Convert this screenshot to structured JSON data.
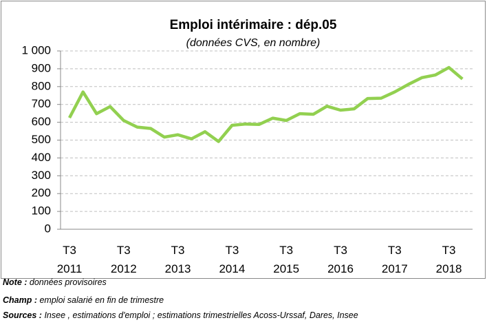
{
  "chart_data": {
    "type": "line",
    "title": "Emploi intérimaire : dép.05",
    "subtitle": "(données CVS, en nombre)",
    "categories": [
      "T3\n2011",
      null,
      null,
      null,
      "T3\n2012",
      null,
      null,
      null,
      "T3\n2013",
      null,
      null,
      null,
      "T3\n2014",
      null,
      null,
      null,
      "T3\n2015",
      null,
      null,
      null,
      "T3\n2016",
      null,
      null,
      null,
      "T3\n2017",
      null,
      null,
      null,
      "T3\n2018",
      null
    ],
    "values": [
      625,
      770,
      648,
      688,
      610,
      573,
      565,
      517,
      530,
      507,
      547,
      492,
      583,
      590,
      588,
      623,
      610,
      648,
      645,
      690,
      668,
      675,
      733,
      735,
      770,
      812,
      850,
      865,
      907,
      843
    ],
    "color": "#92d050",
    "ylim": [
      0,
      1000
    ],
    "yticks": [
      0,
      100,
      200,
      300,
      400,
      500,
      600,
      700,
      800,
      900,
      {
        "value": 1000,
        "label": "1 000"
      }
    ],
    "grid": true,
    "notes": [
      {
        "label": "Note :",
        "text": " données provisoires"
      },
      {
        "label": "Champ :",
        "text": " emploi salarié en fin de trimestre"
      },
      {
        "label": "Sources :",
        "text": " Insee , estimations d'emploi ; estimations trimestrielles Acoss-Urssaf, Dares, Insee"
      }
    ]
  }
}
